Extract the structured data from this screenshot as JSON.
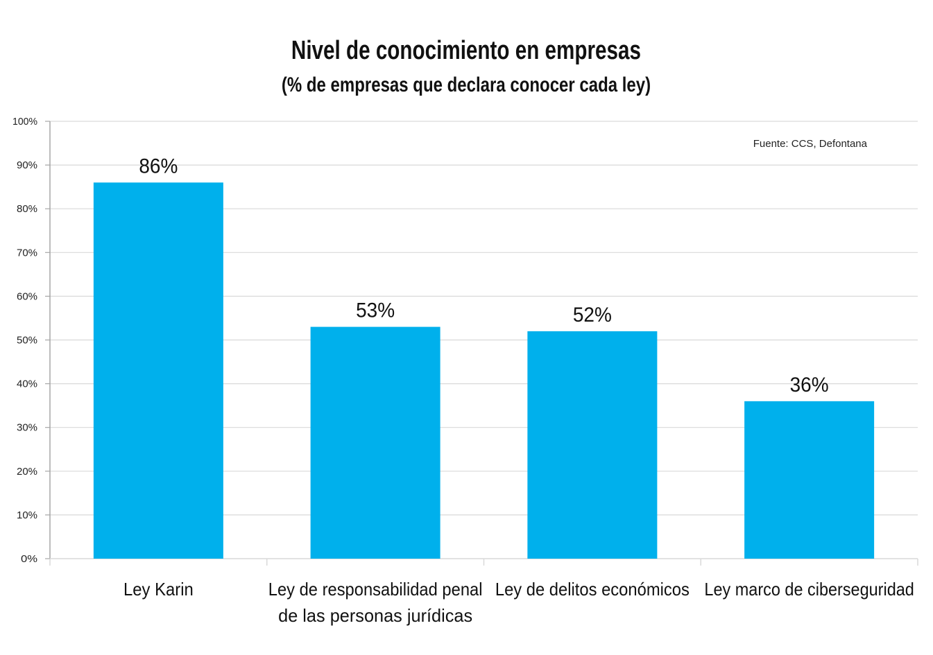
{
  "chart_data": {
    "type": "bar",
    "title": "Nivel de conocimiento en empresas",
    "subtitle": "(% de empresas que declara conocer cada ley)",
    "source": "Fuente: CCS, Defontana",
    "categories": [
      [
        "Ley Karin"
      ],
      [
        "Ley de responsabilidad penal",
        "de las personas jurídicas"
      ],
      [
        "Ley de delitos económicos"
      ],
      [
        "Ley marco de ciberseguridad"
      ]
    ],
    "values": [
      86,
      53,
      52,
      36
    ],
    "data_labels": [
      "86%",
      "53%",
      "52%",
      "36%"
    ],
    "xlabel": "",
    "ylabel": "",
    "ylim": [
      0,
      100
    ],
    "yticks": [
      0,
      10,
      20,
      30,
      40,
      50,
      60,
      70,
      80,
      90,
      100
    ],
    "ytick_labels": [
      "0%",
      "10%",
      "20%",
      "30%",
      "40%",
      "50%",
      "60%",
      "70%",
      "80%",
      "90%",
      "100%"
    ],
    "grid": true,
    "legend": "none",
    "colors": {
      "bar": "#00B0EC",
      "grid": "#D9D9D9",
      "axis": "#A6A6A6"
    }
  }
}
